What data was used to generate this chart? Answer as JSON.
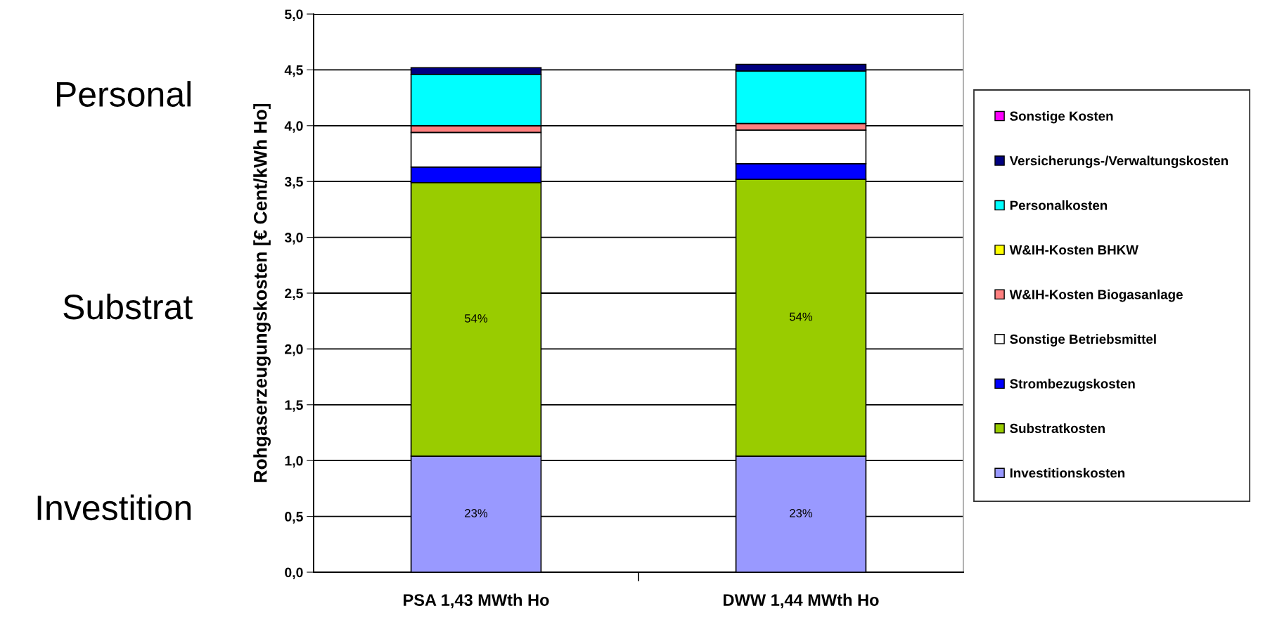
{
  "chart_data": {
    "type": "bar",
    "stacked": true,
    "ylabel": "Rohgaserzeugungskosten [€ Cent/kWh Ho]",
    "categories": [
      "PSA 1,43 MWth Ho",
      "DWW 1,44 MWth Ho"
    ],
    "ylim": [
      0,
      5
    ],
    "yticks": [
      {
        "value": 0,
        "label": "0,0"
      },
      {
        "value": 0.5,
        "label": "0,5"
      },
      {
        "value": 1,
        "label": "1,0"
      },
      {
        "value": 1.5,
        "label": "1,5"
      },
      {
        "value": 2,
        "label": "2,0"
      },
      {
        "value": 2.5,
        "label": "2,5"
      },
      {
        "value": 3,
        "label": "3,0"
      },
      {
        "value": 3.5,
        "label": "3,5"
      },
      {
        "value": 4,
        "label": "4,0"
      },
      {
        "value": 4.5,
        "label": "4,5"
      },
      {
        "value": 5,
        "label": "5,0"
      }
    ],
    "grid": "y",
    "legend": "right",
    "annotations": [
      "Personal",
      "Substrat",
      "Investition",
      "23%",
      "23%",
      "54%",
      "54%"
    ],
    "series": [
      {
        "name": "Investitionskosten",
        "color": "#9999ff",
        "values": [
          1.04,
          1.04
        ]
      },
      {
        "name": "Substratkosten",
        "color": "#99cc00",
        "values": [
          2.45,
          2.48
        ]
      },
      {
        "name": "Strombezugskosten",
        "color": "#0000ff",
        "values": [
          0.14,
          0.14
        ]
      },
      {
        "name": "Sonstige Betriebsmittel",
        "color": "#ffffff",
        "values": [
          0.31,
          0.3
        ]
      },
      {
        "name": "W&IH-Kosten Biogasanlage",
        "color": "#ff8080",
        "values": [
          0.06,
          0.06
        ]
      },
      {
        "name": "W&IH-Kosten BHKW",
        "color": "#ffff00",
        "values": [
          0,
          0
        ]
      },
      {
        "name": "Personalkosten",
        "color": "#00ffff",
        "values": [
          0.46,
          0.47
        ]
      },
      {
        "name": "Versicherungs-/Verwaltungskosten",
        "color": "#000080",
        "values": [
          0.06,
          0.06
        ]
      },
      {
        "name": "Sonstige Kosten",
        "color": "#ff00ff",
        "values": [
          0,
          0
        ]
      }
    ]
  }
}
